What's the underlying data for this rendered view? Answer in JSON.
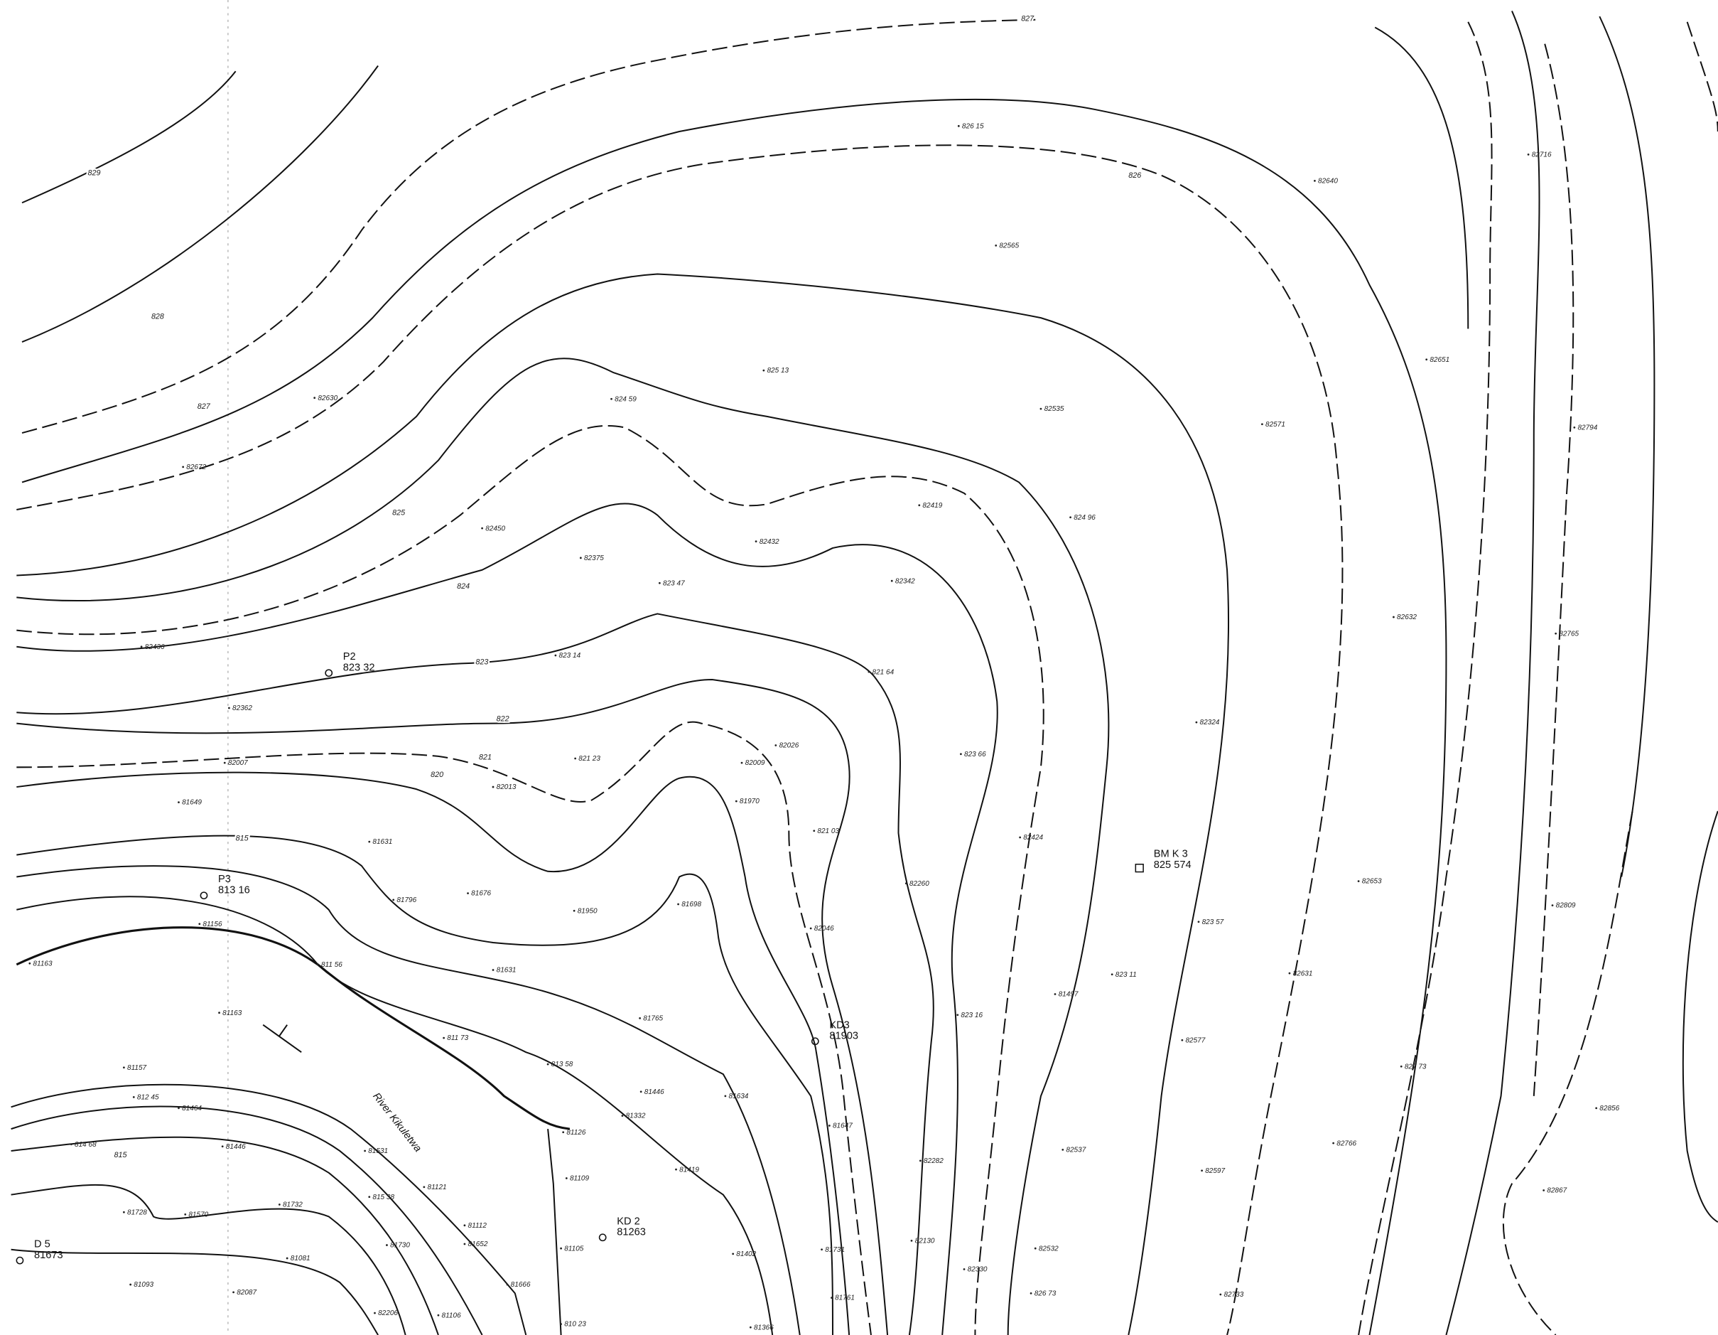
{
  "map": {
    "river_label": "River Kikuletwa",
    "stations": [
      {
        "name": "P2",
        "elevation": "823 32"
      },
      {
        "name": "P3",
        "elevation": "813 16"
      },
      {
        "name": "KD3",
        "elevation": "81903"
      },
      {
        "name": "KD 2",
        "elevation": "81263"
      },
      {
        "name": "BM K 3",
        "elevation": "825 574"
      },
      {
        "name": "D 5",
        "elevation": "81673"
      }
    ],
    "contour_labels": [
      "827",
      "826",
      "829",
      "828",
      "827",
      "825",
      "824",
      "823",
      "822",
      "821",
      "820",
      "815",
      "815"
    ],
    "spot_heights": [
      "82630",
      "82672",
      "82450",
      "82375",
      "823 47",
      "82436",
      "823 14",
      "82362",
      "82007",
      "821 23",
      "82013",
      "82026",
      "82009",
      "81970",
      "821 03",
      "81649",
      "81631",
      "81796",
      "81676",
      "81950",
      "81698",
      "82046",
      "82260",
      "82424",
      "823 66",
      "821 64",
      "82342",
      "82419",
      "82432",
      "824 59",
      "825 13",
      "82565",
      "826 15",
      "82535",
      "824 96",
      "82571",
      "82640",
      "82651",
      "82632",
      "82324",
      "823 57",
      "823 11",
      "81497",
      "823 16",
      "82577",
      "82537",
      "82597",
      "82631",
      "82653",
      "827 73",
      "82766",
      "82733",
      "82716",
      "82794",
      "82765",
      "82809",
      "82856",
      "82867",
      "81156",
      "81163",
      "81163",
      "811 56",
      "811 73",
      "81631",
      "81765",
      "813 58",
      "81446",
      "81634",
      "81332",
      "81126",
      "81109",
      "81419",
      "81647",
      "82282",
      "81157",
      "812 45",
      "81464",
      "814 68",
      "81446",
      "81531",
      "81121",
      "815 38",
      "81112",
      "81652",
      "81570",
      "81728",
      "81732",
      "81730",
      "81081",
      "81105",
      "81402",
      "81731",
      "82130",
      "82532",
      "82330",
      "826 73",
      "81761",
      "81093",
      "82087",
      "82206",
      "81106",
      "810 23",
      "81366",
      "81666"
    ]
  }
}
